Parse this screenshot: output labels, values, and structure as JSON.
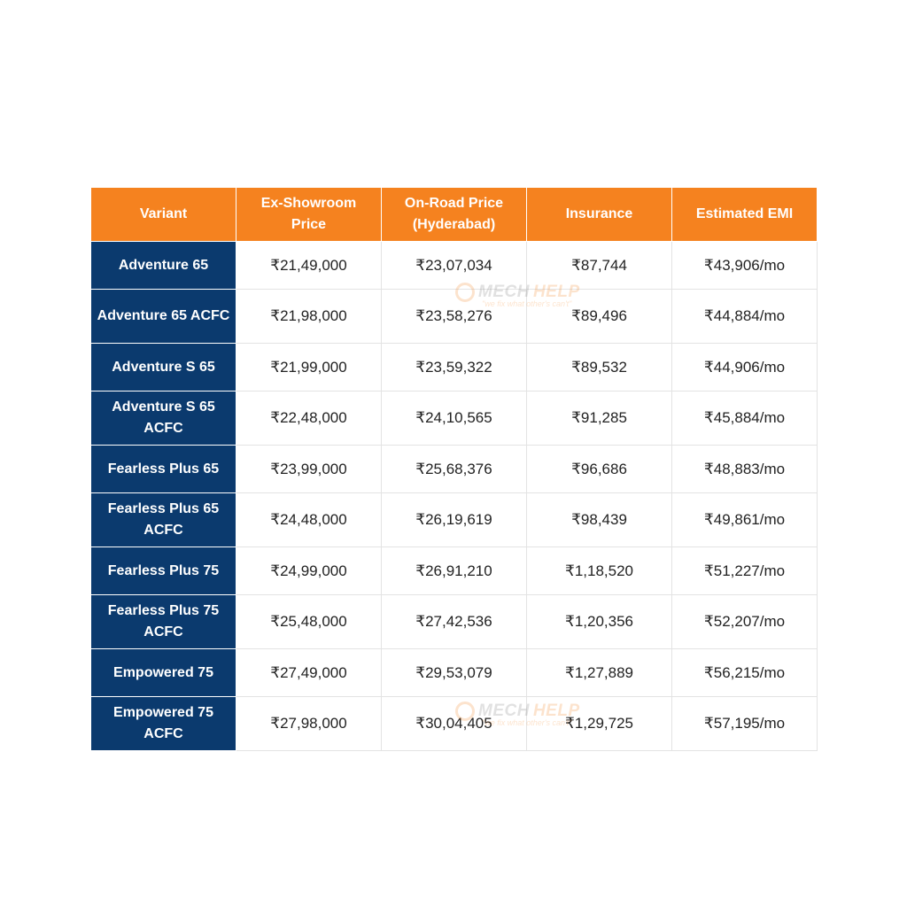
{
  "table": {
    "headers": [
      "Variant",
      "Ex-Showroom Price",
      "On-Road Price (Hyderabad)",
      "Insurance",
      "Estimated EMI"
    ],
    "rows": [
      {
        "variant": "Adventure 65",
        "ex_showroom": "₹21,49,000",
        "on_road": "₹23,07,034",
        "insurance": "₹87,744",
        "emi": "₹43,906/mo"
      },
      {
        "variant": "Adventure 65 ACFC",
        "ex_showroom": "₹21,98,000",
        "on_road": "₹23,58,276",
        "insurance": "₹89,496",
        "emi": "₹44,884/mo"
      },
      {
        "variant": "Adventure S 65",
        "ex_showroom": "₹21,99,000",
        "on_road": "₹23,59,322",
        "insurance": "₹89,532",
        "emi": "₹44,906/mo"
      },
      {
        "variant": "Adventure S 65 ACFC",
        "ex_showroom": "₹22,48,000",
        "on_road": "₹24,10,565",
        "insurance": "₹91,285",
        "emi": "₹45,884/mo"
      },
      {
        "variant": "Fearless Plus 65",
        "ex_showroom": "₹23,99,000",
        "on_road": "₹25,68,376",
        "insurance": "₹96,686",
        "emi": "₹48,883/mo"
      },
      {
        "variant": "Fearless Plus 65 ACFC",
        "ex_showroom": "₹24,48,000",
        "on_road": "₹26,19,619",
        "insurance": "₹98,439",
        "emi": "₹49,861/mo"
      },
      {
        "variant": "Fearless Plus 75",
        "ex_showroom": "₹24,99,000",
        "on_road": "₹26,91,210",
        "insurance": "₹1,18,520",
        "emi": "₹51,227/mo"
      },
      {
        "variant": "Fearless Plus 75 ACFC",
        "ex_showroom": "₹25,48,000",
        "on_road": "₹27,42,536",
        "insurance": "₹1,20,356",
        "emi": "₹52,207/mo"
      },
      {
        "variant": "Empowered 75",
        "ex_showroom": "₹27,49,000",
        "on_road": "₹29,53,079",
        "insurance": "₹1,27,889",
        "emi": "₹56,215/mo"
      },
      {
        "variant": "Empowered 75 ACFC",
        "ex_showroom": "₹27,98,000",
        "on_road": "₹30,04,405",
        "insurance": "₹1,29,725",
        "emi": "₹57,195/mo"
      }
    ]
  },
  "watermark": {
    "brand_part1": "MECH",
    "brand_part2": "HELP",
    "tagline": "\"we fix what other's can't\""
  },
  "colors": {
    "header_bg": "#f5821f",
    "variant_bg": "#0b3a6e"
  }
}
